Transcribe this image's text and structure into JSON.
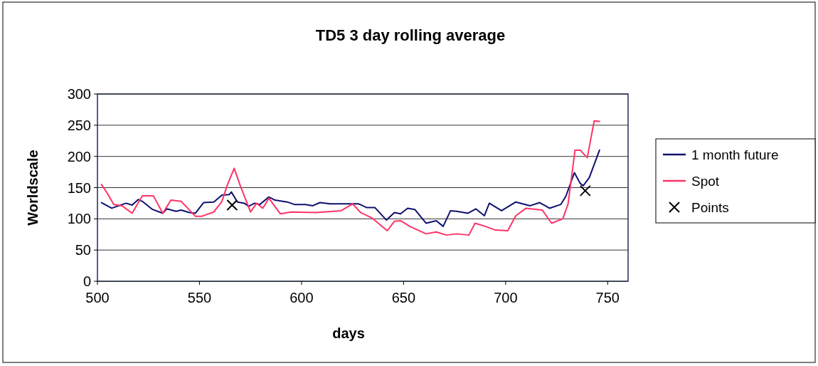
{
  "chart_data": {
    "type": "line",
    "title": "TD5 3 day rolling average",
    "xlabel": "days",
    "ylabel": "Worldscale",
    "xlim": [
      500,
      760
    ],
    "xticks": [
      500,
      550,
      600,
      650,
      700,
      750
    ],
    "ylim": [
      0,
      300
    ],
    "yticks": [
      0,
      50,
      100,
      150,
      200,
      250,
      300
    ],
    "grid": "y",
    "legend": "right",
    "series": [
      {
        "name": "1 month future",
        "color": "#101070",
        "x": [
          502,
          507,
          514,
          517,
          520,
          522,
          527,
          532,
          534,
          538.5,
          541,
          545,
          548,
          552,
          557,
          561,
          564.6,
          565.6,
          568.6,
          572,
          574,
          577,
          579.5,
          584,
          587,
          593,
          596.5,
          602,
          605.5,
          609,
          614,
          625,
          628,
          632,
          636,
          641.6,
          645.5,
          648.5,
          652,
          655.5,
          661,
          666,
          669.4,
          673,
          676,
          681.6,
          685.4,
          689.6,
          692,
          698,
          705,
          712,
          716.7,
          721.5,
          727,
          729.5,
          733.7,
          736.5,
          738,
          741,
          746
        ],
        "values": [
          126,
          117,
          125,
          122,
          131,
          128,
          115,
          109,
          116,
          112,
          114,
          110,
          109,
          126,
          127,
          138,
          139,
          143,
          127,
          125,
          120,
          125,
          123,
          135,
          130,
          127,
          123,
          123,
          121,
          126,
          124,
          124,
          124,
          118,
          118,
          98,
          110,
          108,
          117,
          115,
          93,
          97,
          88,
          113,
          112,
          109,
          116,
          105,
          125,
          113,
          127,
          121,
          126,
          117,
          123,
          136,
          174,
          157,
          153,
          166,
          210
        ]
      },
      {
        "name": "Spot",
        "color": "#ff3366",
        "x": [
          502,
          505,
          508,
          512,
          517,
          522,
          527.4,
          532,
          536,
          541,
          548,
          551,
          557,
          561,
          563.5,
          567,
          570,
          575,
          578,
          581,
          584,
          589.6,
          595,
          607,
          619.4,
          625,
          629,
          634.7,
          642,
          645.5,
          648.5,
          653,
          661,
          666,
          671,
          676,
          682,
          685,
          690,
          695,
          701,
          705,
          710,
          718,
          722.5,
          728,
          730.6,
          734,
          736.5,
          740,
          743.4,
          746
        ],
        "values": [
          155,
          140,
          123,
          121,
          109,
          137,
          137,
          109,
          130,
          128,
          104,
          104,
          111,
          128,
          153,
          181,
          153,
          111,
          125,
          117,
          133,
          108,
          111,
          110,
          113,
          124,
          110,
          101,
          81,
          96,
          97,
          88,
          76,
          79,
          74,
          76,
          74,
          93,
          88,
          82,
          81,
          105,
          117,
          114,
          93,
          100,
          124,
          210,
          210,
          198,
          257,
          256
        ]
      },
      {
        "name": "Points",
        "type": "scatter",
        "marker": "cross",
        "color": "#000000",
        "x": [
          566,
          739
        ],
        "values": [
          122,
          145
        ]
      }
    ]
  }
}
